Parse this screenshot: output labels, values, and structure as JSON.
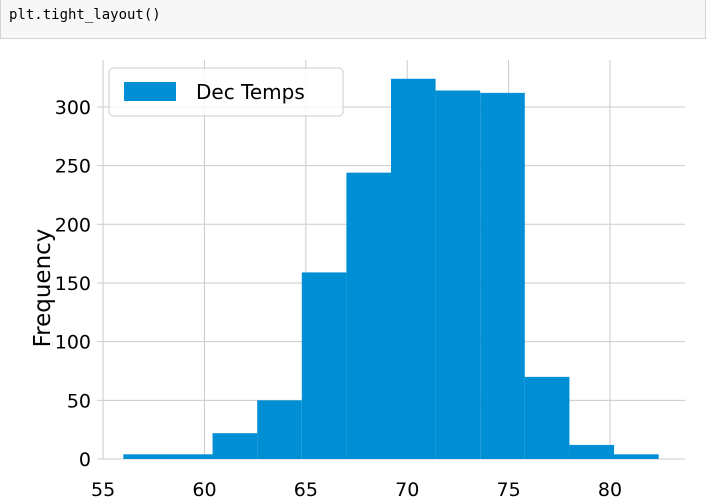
{
  "code_cell": {
    "code": "plt.tight_layout()"
  },
  "chart_data": {
    "type": "bar",
    "subtype": "histogram",
    "bins": [
      {
        "x0": 56.0,
        "x1": 58.2,
        "value": 4
      },
      {
        "x0": 58.2,
        "x1": 60.4,
        "value": 4
      },
      {
        "x0": 60.4,
        "x1": 62.6,
        "value": 22
      },
      {
        "x0": 62.6,
        "x1": 64.8,
        "value": 50
      },
      {
        "x0": 64.8,
        "x1": 67.0,
        "value": 159
      },
      {
        "x0": 67.0,
        "x1": 69.2,
        "value": 244
      },
      {
        "x0": 69.2,
        "x1": 71.4,
        "value": 324
      },
      {
        "x0": 71.4,
        "x1": 73.6,
        "value": 314
      },
      {
        "x0": 73.6,
        "x1": 75.8,
        "value": 312
      },
      {
        "x0": 75.8,
        "x1": 78.0,
        "value": 70
      },
      {
        "x0": 78.0,
        "x1": 80.2,
        "value": 12
      },
      {
        "x0": 80.2,
        "x1": 82.4,
        "value": 4
      }
    ],
    "series": [
      {
        "name": "Dec Temps"
      }
    ],
    "xlabel": "",
    "ylabel": "Frequency",
    "xlim": [
      54.7,
      83.7
    ],
    "ylim": [
      0,
      340
    ],
    "xticks": [
      55,
      60,
      65,
      70,
      75,
      80
    ],
    "yticks": [
      0,
      50,
      100,
      150,
      200,
      250,
      300
    ],
    "grid": true,
    "legend_position": "top-left",
    "style": "fivethirtyeight",
    "bar_color": "#008fd5",
    "grid_color": "#cbcbcb"
  }
}
